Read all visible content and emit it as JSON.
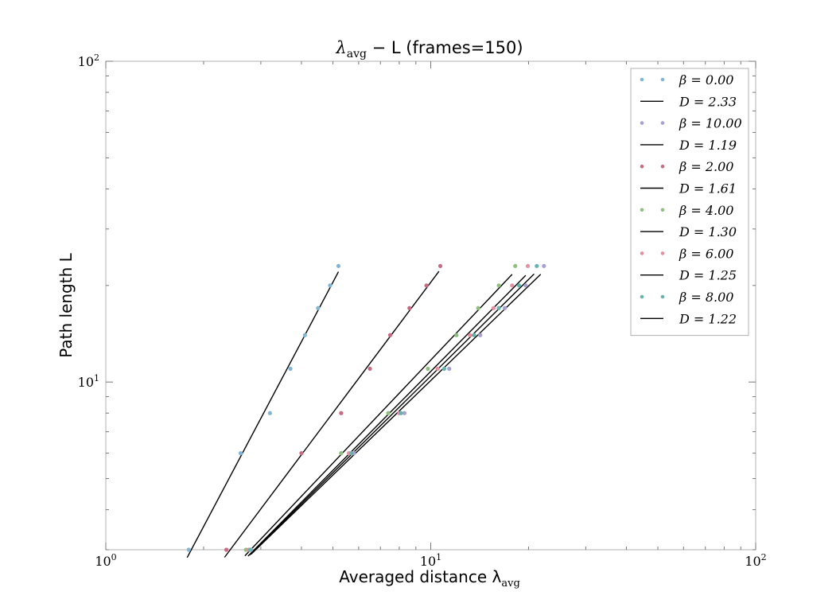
{
  "chart_data": {
    "type": "scatter",
    "title": {
      "main": "λ",
      "sub": "avg",
      "rest": " − L (frames=150)"
    },
    "xlabel": {
      "main": "Averaged distance λ",
      "sub": "avg"
    },
    "ylabel": "Path length L",
    "x_scale": "log",
    "y_scale": "log",
    "xlim": [
      1,
      100
    ],
    "ylim": [
      3,
      100
    ],
    "x_major_ticks": [
      1,
      10,
      100
    ],
    "x_tick_labels": [
      {
        "base": "10",
        "exp": "0"
      },
      {
        "base": "10",
        "exp": "1"
      },
      {
        "base": "10",
        "exp": "2"
      }
    ],
    "y_major_ticks": [
      10,
      100
    ],
    "y_tick_labels": [
      {
        "base": "10",
        "exp": "1"
      },
      {
        "base": "10",
        "exp": "2"
      }
    ],
    "grid": false,
    "legend_position": "top-right",
    "series": [
      {
        "name": "β = 0.00",
        "color": "#7fb6d8",
        "fit_label": "D = 2.33",
        "points": [
          [
            1.8,
            3
          ],
          [
            2.6,
            6
          ],
          [
            3.2,
            8
          ],
          [
            3.7,
            11
          ],
          [
            4.1,
            14
          ],
          [
            4.5,
            17
          ],
          [
            4.9,
            20
          ],
          [
            5.2,
            23
          ]
        ],
        "fit": {
          "x0": 1.78,
          "x1": 5.2
        }
      },
      {
        "name": "β = 10.00",
        "color": "#a7a0d0",
        "fit_label": "D = 1.19",
        "points": [
          [
            2.8,
            3
          ],
          [
            5.8,
            6
          ],
          [
            8.3,
            8
          ],
          [
            11.4,
            11
          ],
          [
            14.2,
            14
          ],
          [
            16.9,
            17
          ],
          [
            19.6,
            20
          ],
          [
            22.3,
            23
          ]
        ],
        "fit": {
          "x0": 2.8,
          "x1": 21.8
        }
      },
      {
        "name": "β = 2.00",
        "color": "#c86a82",
        "fit_label": "D = 1.61",
        "points": [
          [
            2.35,
            3
          ],
          [
            4.0,
            6
          ],
          [
            5.3,
            8
          ],
          [
            6.5,
            11
          ],
          [
            7.5,
            14
          ],
          [
            8.6,
            17
          ],
          [
            9.7,
            20
          ],
          [
            10.7,
            23
          ]
        ],
        "fit": {
          "x0": 2.32,
          "x1": 10.6
        }
      },
      {
        "name": "β = 4.00",
        "color": "#8fbf7f",
        "fit_label": "D = 1.30",
        "points": [
          [
            2.7,
            3
          ],
          [
            5.3,
            6
          ],
          [
            7.4,
            8
          ],
          [
            9.8,
            11
          ],
          [
            12.0,
            14
          ],
          [
            14.0,
            17
          ],
          [
            16.2,
            20
          ],
          [
            18.2,
            23
          ]
        ],
        "fit": {
          "x0": 2.68,
          "x1": 17.8
        }
      },
      {
        "name": "β = 6.00",
        "color": "#e58fa0",
        "fit_label": "D = 1.25",
        "points": [
          [
            2.75,
            3
          ],
          [
            5.6,
            6
          ],
          [
            8.0,
            8
          ],
          [
            10.5,
            11
          ],
          [
            13.2,
            14
          ],
          [
            15.6,
            17
          ],
          [
            17.8,
            20
          ],
          [
            19.9,
            23
          ]
        ],
        "fit": {
          "x0": 2.74,
          "x1": 19.6
        }
      },
      {
        "name": "β = 8.00",
        "color": "#66b3ac",
        "fit_label": "D = 1.22",
        "points": [
          [
            2.78,
            3
          ],
          [
            5.7,
            6
          ],
          [
            8.1,
            8
          ],
          [
            11.0,
            11
          ],
          [
            13.6,
            14
          ],
          [
            16.2,
            17
          ],
          [
            18.7,
            20
          ],
          [
            21.2,
            23
          ]
        ],
        "fit": {
          "x0": 2.77,
          "x1": 20.8
        }
      }
    ]
  }
}
